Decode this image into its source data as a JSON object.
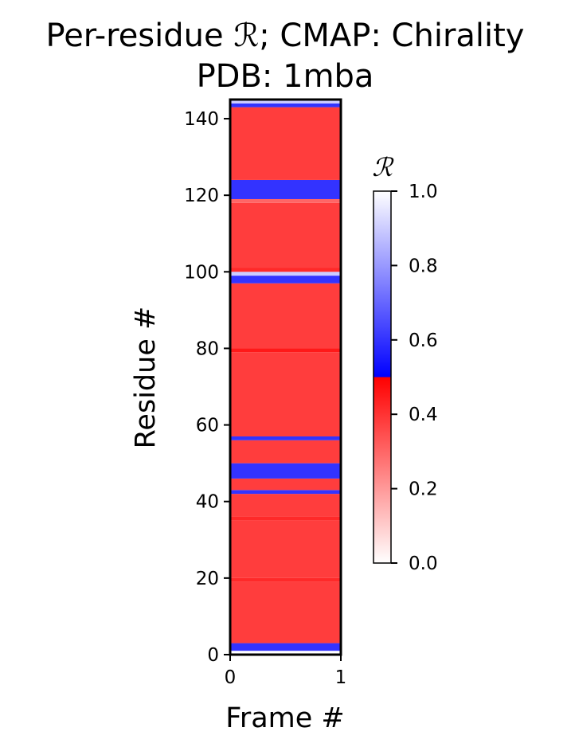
{
  "chart_data": {
    "type": "heatmap",
    "title_lines": [
      "Per-residue ℛ; CMAP: Chirality",
      "PDB: 1mba"
    ],
    "xlabel": "Frame #",
    "ylabel": "Residue #",
    "x_ticks": [
      "0",
      "1"
    ],
    "y_ticks": [
      "0",
      "20",
      "40",
      "60",
      "80",
      "100",
      "120",
      "140"
    ],
    "xlim": [
      0,
      1
    ],
    "ylim": [
      0,
      145
    ],
    "colorbar": {
      "label": "ℛ",
      "ticks": [
        "0.0",
        "0.2",
        "0.4",
        "0.6",
        "0.8",
        "1.0"
      ],
      "range": [
        0,
        1
      ],
      "colormap": [
        "#ffffff",
        "#ff0000",
        "#0000ff",
        "#ffffff"
      ]
    },
    "segments": [
      {
        "from": 0,
        "to": 1,
        "value": 1.0
      },
      {
        "from": 1,
        "to": 3,
        "value": 0.6
      },
      {
        "from": 3,
        "to": 19,
        "value": 0.38
      },
      {
        "from": 19,
        "to": 20,
        "value": 0.42
      },
      {
        "from": 20,
        "to": 35,
        "value": 0.38
      },
      {
        "from": 35,
        "to": 36,
        "value": 0.42
      },
      {
        "from": 36,
        "to": 42,
        "value": 0.38
      },
      {
        "from": 42,
        "to": 43,
        "value": 0.6
      },
      {
        "from": 43,
        "to": 46,
        "value": 0.38
      },
      {
        "from": 46,
        "to": 50,
        "value": 0.6
      },
      {
        "from": 50,
        "to": 56,
        "value": 0.38
      },
      {
        "from": 56,
        "to": 57,
        "value": 0.6
      },
      {
        "from": 57,
        "to": 79,
        "value": 0.38
      },
      {
        "from": 79,
        "to": 80,
        "value": 0.45
      },
      {
        "from": 80,
        "to": 97,
        "value": 0.38
      },
      {
        "from": 97,
        "to": 99,
        "value": 0.6
      },
      {
        "from": 99,
        "to": 100,
        "value": 0.9
      },
      {
        "from": 100,
        "to": 101,
        "value": 0.42
      },
      {
        "from": 101,
        "to": 118,
        "value": 0.38
      },
      {
        "from": 118,
        "to": 119,
        "value": 0.3
      },
      {
        "from": 119,
        "to": 124,
        "value": 0.6
      },
      {
        "from": 124,
        "to": 143,
        "value": 0.38
      },
      {
        "from": 143,
        "to": 144,
        "value": 0.6
      },
      {
        "from": 144,
        "to": 145,
        "value": 0.9
      }
    ]
  }
}
